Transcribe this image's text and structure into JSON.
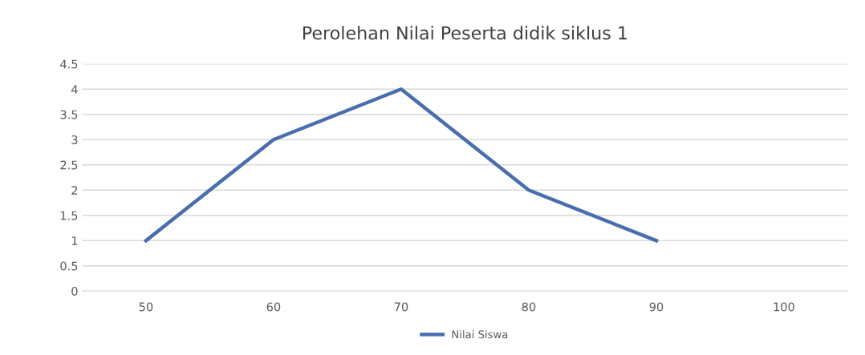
{
  "chart_data": {
    "type": "line",
    "title": "Perolehan Nilai Peserta didik siklus 1",
    "categories": [
      "50",
      "60",
      "70",
      "80",
      "90",
      "100"
    ],
    "series": [
      {
        "name": "Nilai Siswa",
        "color": "#4a6ead",
        "values": [
          1,
          3,
          4,
          2,
          1,
          null
        ]
      }
    ],
    "ylim": [
      0,
      4.5
    ],
    "yticks": [
      0,
      0.5,
      1,
      1.5,
      2,
      2.5,
      3,
      3.5,
      4,
      4.5
    ],
    "grid": "y",
    "legend": "bottom",
    "marker": "none",
    "line_style": "solid"
  }
}
